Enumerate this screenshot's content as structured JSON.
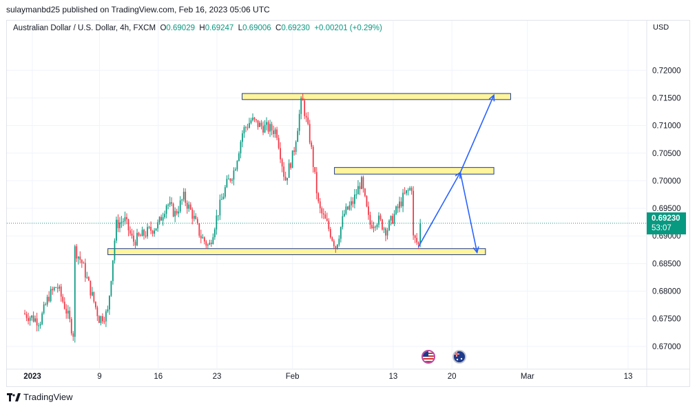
{
  "header": {
    "published_by": "sulaymanbd25 published on TradingView.com, Feb 16, 2023 05:06 UTC"
  },
  "legend": {
    "symbol": "Australian Dollar / U.S. Dollar, 4h, FXCM",
    "o_label": "O",
    "o_value": "0.69029",
    "h_label": "H",
    "h_value": "0.69247",
    "l_label": "L",
    "l_value": "0.69006",
    "c_label": "C",
    "c_value": "0.69230",
    "change": "+0.00201 (+0.29%)"
  },
  "axis": {
    "currency": "USD"
  },
  "price_tag": {
    "price": "0.69230",
    "countdown": "53:07"
  },
  "footer": {
    "brand": "TradingView"
  },
  "colors": {
    "up": "#089981",
    "down": "#f23645",
    "zone_fill": "#fff59d",
    "zone_border": "#1e3a8a",
    "arrow": "#2962ff"
  },
  "icons": {
    "us_flag": "us-flag-icon",
    "au_flag": "au-flag-icon"
  },
  "chart_data": {
    "type": "candlestick",
    "title": "",
    "y_ticks": [
      "0.67000",
      "0.67500",
      "0.68000",
      "0.68500",
      "0.69000",
      "0.69500",
      "0.70000",
      "0.70500",
      "0.71000",
      "0.71500",
      "0.72000"
    ],
    "ylim": [
      0.666,
      0.729
    ],
    "x_ticks": [
      {
        "label": "2023",
        "bold": true,
        "date": "2023-01-01"
      },
      {
        "label": "9",
        "date": "2023-01-09"
      },
      {
        "label": "16",
        "date": "2023-01-16"
      },
      {
        "label": "23",
        "date": "2023-01-23"
      },
      {
        "label": "Feb",
        "date": "2023-02-01"
      },
      {
        "label": "13",
        "date": "2023-02-13"
      },
      {
        "label": "20",
        "date": "2023-02-20"
      },
      {
        "label": "Mar",
        "date": "2023-03-01"
      },
      {
        "label": "13",
        "date": "2023-03-13"
      }
    ],
    "last_price": 0.6923,
    "close_path": [
      [
        "2022-12-31",
        0.676
      ],
      [
        "2023-01-02",
        0.6745
      ],
      [
        "2023-01-03",
        0.679
      ],
      [
        "2023-01-04",
        0.681
      ],
      [
        "2023-01-05",
        0.677
      ],
      [
        "2023-01-06",
        0.672
      ],
      [
        "2023-01-06",
        0.688
      ],
      [
        "2023-01-07",
        0.685
      ],
      [
        "2023-01-08",
        0.68
      ],
      [
        "2023-01-09",
        0.675
      ],
      [
        "2023-01-10",
        0.676
      ],
      [
        "2023-01-11",
        0.692
      ],
      [
        "2023-01-12",
        0.693
      ],
      [
        "2023-01-13",
        0.689
      ],
      [
        "2023-01-14",
        0.69
      ],
      [
        "2023-01-16",
        0.692
      ],
      [
        "2023-01-17",
        0.696
      ],
      [
        "2023-01-18",
        0.694
      ],
      [
        "2023-01-19",
        0.697
      ],
      [
        "2023-01-20",
        0.694
      ],
      [
        "2023-01-21",
        0.69
      ],
      [
        "2023-01-22",
        0.688
      ],
      [
        "2023-01-23",
        0.694
      ],
      [
        "2023-01-24",
        0.699
      ],
      [
        "2023-01-25",
        0.702
      ],
      [
        "2023-01-26",
        0.709
      ],
      [
        "2023-01-27",
        0.711
      ],
      [
        "2023-01-28",
        0.71
      ],
      [
        "2023-01-30",
        0.709
      ],
      [
        "2023-01-31",
        0.7
      ],
      [
        "2023-02-01",
        0.705
      ],
      [
        "2023-02-02",
        0.715
      ],
      [
        "2023-02-03",
        0.707
      ],
      [
        "2023-02-04",
        0.695
      ],
      [
        "2023-02-05",
        0.692
      ],
      [
        "2023-02-06",
        0.688
      ],
      [
        "2023-02-07",
        0.694
      ],
      [
        "2023-02-08",
        0.696
      ],
      [
        "2023-02-09",
        0.7
      ],
      [
        "2023-02-10",
        0.692
      ],
      [
        "2023-02-11",
        0.693
      ],
      [
        "2023-02-12",
        0.691
      ],
      [
        "2023-02-13",
        0.694
      ],
      [
        "2023-02-14",
        0.697
      ],
      [
        "2023-02-15",
        0.699
      ],
      [
        "2023-02-15",
        0.69
      ],
      [
        "2023-02-16",
        0.688
      ],
      [
        "2023-02-16",
        0.6923
      ]
    ],
    "zones": [
      {
        "date_start": "2023-01-26",
        "date_end": "2023-02-27",
        "y_low": 0.7147,
        "y_high": 0.7158
      },
      {
        "date_start": "2023-02-06",
        "date_end": "2023-02-25",
        "y_low": 0.7012,
        "y_high": 0.7024
      },
      {
        "date_start": "2023-01-10",
        "date_end": "2023-02-24",
        "y_low": 0.6866,
        "y_high": 0.6877
      }
    ],
    "projection_path": [
      [
        "2023-02-16",
        0.688
      ],
      [
        "2023-02-21",
        0.7015
      ],
      [
        "2023-02-23",
        0.687
      ],
      [
        "2023-02-21",
        0.7015
      ],
      [
        "2023-02-25",
        0.7155
      ]
    ]
  }
}
